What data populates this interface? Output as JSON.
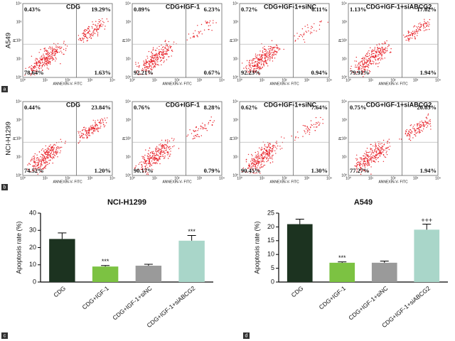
{
  "flow": {
    "axis_x_label": "ANNEXIN-V- FITC",
    "axis_y_label": "PI",
    "axis_ticks": [
      "10⁰",
      "10¹",
      "10²",
      "10³",
      "10⁴"
    ],
    "rows": [
      {
        "panel": "a",
        "label": "A549",
        "plots": [
          {
            "title": "CDG",
            "quadrants": [
              "0.43%",
              "19.29%",
              "78.64%",
              "1.63%"
            ]
          },
          {
            "title": "CDG+IGF-1",
            "quadrants": [
              "0.89%",
              "6.23%",
              "92.21%",
              "0.67%"
            ]
          },
          {
            "title": "CDG+IGF-1+siNC",
            "quadrants": [
              "0.72%",
              "6.11%",
              "92.23%",
              "0.94%"
            ]
          },
          {
            "title": "CDG+IGF-1+siABCG2",
            "quadrants": [
              "1.13%",
              "17.02%",
              "79.91%",
              "1.94%"
            ]
          }
        ]
      },
      {
        "panel": "b",
        "label": "NCI-H1299",
        "plots": [
          {
            "title": "CDG",
            "quadrants": [
              "0.44%",
              "23.84%",
              "74.52%",
              "1.20%"
            ]
          },
          {
            "title": "CDG+IGF-1",
            "quadrants": [
              "0.76%",
              "8.28%",
              "90.17%",
              "0.79%"
            ]
          },
          {
            "title": "CDG+IGF-1+siNC",
            "quadrants": [
              "0.62%",
              "7.64%",
              "90.45%",
              "1.30%"
            ]
          },
          {
            "title": "CDG+IGF-1+siABCG2",
            "quadrants": [
              "0.75%",
              "20.03%",
              "77.27%",
              "1.94%"
            ]
          }
        ]
      }
    ]
  },
  "chart_data": [
    {
      "type": "bar",
      "panel": "c",
      "title": "NCI-H1299",
      "y_label": "Apoptosis rate (%)",
      "categories": [
        "CDG",
        "CDG+IGF-1",
        "CDG+IGF-1+siNC",
        "CDG+IGF-1+siABCG2"
      ],
      "values": [
        25,
        9,
        9.5,
        24
      ],
      "errors": [
        3.5,
        0.6,
        0.8,
        3
      ],
      "colors": [
        "#1c3320",
        "#7cc242",
        "#9a9a9a",
        "#a9d6c9"
      ],
      "annotations": [
        {
          "category": "CDG+IGF-1",
          "text": "***"
        },
        {
          "category": "CDG+IGF-1+siABCG2",
          "text": "***"
        }
      ],
      "ylim": [
        0,
        40
      ],
      "yticks": [
        0,
        10,
        20,
        30,
        40
      ]
    },
    {
      "type": "bar",
      "panel": "d",
      "title": "A549",
      "y_label": "Apoptosis rate (%)",
      "categories": [
        "CDG",
        "CDG+IGF-1",
        "CDG+IGF-1+siNC",
        "CDG+IGF-1+siABCG2"
      ],
      "values": [
        21,
        7,
        7,
        19
      ],
      "errors": [
        1.8,
        0.3,
        0.6,
        2
      ],
      "colors": [
        "#1c3320",
        "#7cc242",
        "#9a9a9a",
        "#a9d6c9"
      ],
      "annotations": [
        {
          "category": "CDG+IGF-1",
          "text": "***"
        },
        {
          "category": "CDG+IGF-1+siABCG2",
          "text": "+++"
        }
      ],
      "ylim": [
        0,
        25
      ],
      "yticks": [
        0,
        5,
        10,
        15,
        20,
        25
      ]
    }
  ]
}
